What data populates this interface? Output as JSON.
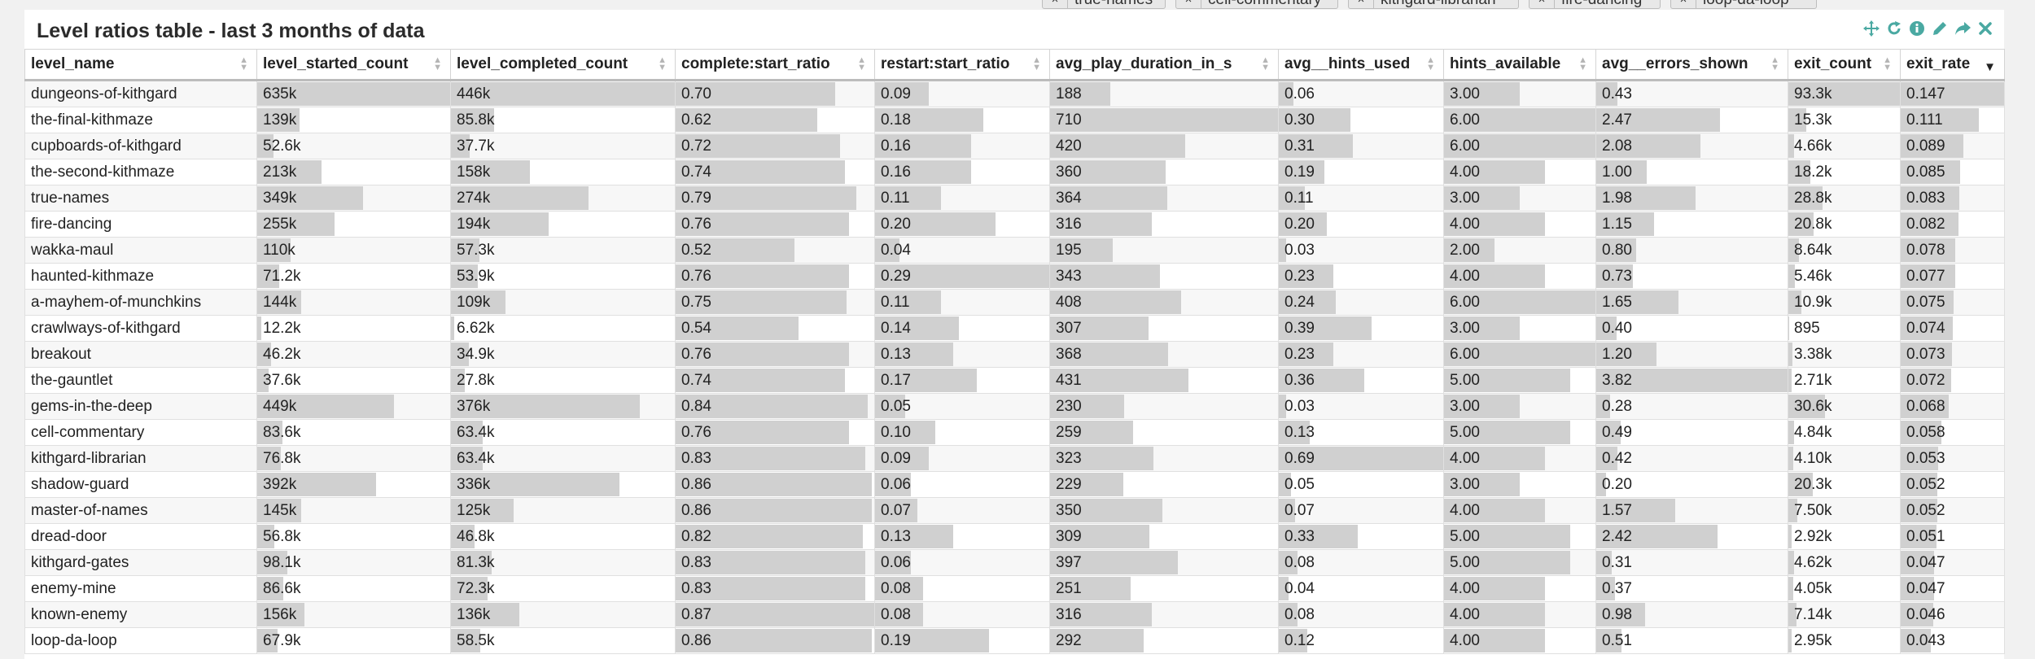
{
  "filters": [
    "true-names",
    "cell-commentary",
    "kithgard-librarian",
    "fire-dancing",
    "loop-da-loop"
  ],
  "panel": {
    "title": "Level ratios table - last 3 months of data"
  },
  "columns": [
    {
      "key": "level_name",
      "label": "level_name"
    },
    {
      "key": "level_started_count",
      "label": "level_started_count"
    },
    {
      "key": "level_completed_count",
      "label": "level_completed_count"
    },
    {
      "key": "complete_start_ratio",
      "label": "complete:start_ratio"
    },
    {
      "key": "restart_start_ratio",
      "label": "restart:start_ratio"
    },
    {
      "key": "avg_play_duration_in_s",
      "label": "avg_play_duration_in_s"
    },
    {
      "key": "avg_hints_used",
      "label": "avg__hints_used"
    },
    {
      "key": "hints_available",
      "label": "hints_available"
    },
    {
      "key": "avg_errors_shown",
      "label": "avg__errors_shown"
    },
    {
      "key": "exit_count",
      "label": "exit_count"
    },
    {
      "key": "exit_rate",
      "label": "exit_rate",
      "sorted": "desc"
    }
  ],
  "rows": [
    {
      "level_name": "dungeons-of-kithgard",
      "level_started_count": "635k",
      "level_completed_count": "446k",
      "complete_start_ratio": "0.70",
      "restart_start_ratio": "0.09",
      "avg_play_duration_in_s": "188",
      "avg_hints_used": "0.06",
      "hints_available": "3.00",
      "avg_errors_shown": "0.43",
      "exit_count": "93.3k",
      "exit_rate": "0.147"
    },
    {
      "level_name": "the-final-kithmaze",
      "level_started_count": "139k",
      "level_completed_count": "85.8k",
      "complete_start_ratio": "0.62",
      "restart_start_ratio": "0.18",
      "avg_play_duration_in_s": "710",
      "avg_hints_used": "0.30",
      "hints_available": "6.00",
      "avg_errors_shown": "2.47",
      "exit_count": "15.3k",
      "exit_rate": "0.111"
    },
    {
      "level_name": "cupboards-of-kithgard",
      "level_started_count": "52.6k",
      "level_completed_count": "37.7k",
      "complete_start_ratio": "0.72",
      "restart_start_ratio": "0.16",
      "avg_play_duration_in_s": "420",
      "avg_hints_used": "0.31",
      "hints_available": "6.00",
      "avg_errors_shown": "2.08",
      "exit_count": "4.66k",
      "exit_rate": "0.089"
    },
    {
      "level_name": "the-second-kithmaze",
      "level_started_count": "213k",
      "level_completed_count": "158k",
      "complete_start_ratio": "0.74",
      "restart_start_ratio": "0.16",
      "avg_play_duration_in_s": "360",
      "avg_hints_used": "0.19",
      "hints_available": "4.00",
      "avg_errors_shown": "1.00",
      "exit_count": "18.2k",
      "exit_rate": "0.085"
    },
    {
      "level_name": "true-names",
      "level_started_count": "349k",
      "level_completed_count": "274k",
      "complete_start_ratio": "0.79",
      "restart_start_ratio": "0.11",
      "avg_play_duration_in_s": "364",
      "avg_hints_used": "0.11",
      "hints_available": "3.00",
      "avg_errors_shown": "1.98",
      "exit_count": "28.8k",
      "exit_rate": "0.083"
    },
    {
      "level_name": "fire-dancing",
      "level_started_count": "255k",
      "level_completed_count": "194k",
      "complete_start_ratio": "0.76",
      "restart_start_ratio": "0.20",
      "avg_play_duration_in_s": "316",
      "avg_hints_used": "0.20",
      "hints_available": "4.00",
      "avg_errors_shown": "1.15",
      "exit_count": "20.8k",
      "exit_rate": "0.082"
    },
    {
      "level_name": "wakka-maul",
      "level_started_count": "110k",
      "level_completed_count": "57.3k",
      "complete_start_ratio": "0.52",
      "restart_start_ratio": "0.04",
      "avg_play_duration_in_s": "195",
      "avg_hints_used": "0.03",
      "hints_available": "2.00",
      "avg_errors_shown": "0.80",
      "exit_count": "8.64k",
      "exit_rate": "0.078"
    },
    {
      "level_name": "haunted-kithmaze",
      "level_started_count": "71.2k",
      "level_completed_count": "53.9k",
      "complete_start_ratio": "0.76",
      "restart_start_ratio": "0.29",
      "avg_play_duration_in_s": "343",
      "avg_hints_used": "0.23",
      "hints_available": "4.00",
      "avg_errors_shown": "0.73",
      "exit_count": "5.46k",
      "exit_rate": "0.077"
    },
    {
      "level_name": "a-mayhem-of-munchkins",
      "level_started_count": "144k",
      "level_completed_count": "109k",
      "complete_start_ratio": "0.75",
      "restart_start_ratio": "0.11",
      "avg_play_duration_in_s": "408",
      "avg_hints_used": "0.24",
      "hints_available": "6.00",
      "avg_errors_shown": "1.65",
      "exit_count": "10.9k",
      "exit_rate": "0.075"
    },
    {
      "level_name": "crawlways-of-kithgard",
      "level_started_count": "12.2k",
      "level_completed_count": "6.62k",
      "complete_start_ratio": "0.54",
      "restart_start_ratio": "0.14",
      "avg_play_duration_in_s": "307",
      "avg_hints_used": "0.39",
      "hints_available": "3.00",
      "avg_errors_shown": "0.40",
      "exit_count": "895",
      "exit_rate": "0.074"
    },
    {
      "level_name": "breakout",
      "level_started_count": "46.2k",
      "level_completed_count": "34.9k",
      "complete_start_ratio": "0.76",
      "restart_start_ratio": "0.13",
      "avg_play_duration_in_s": "368",
      "avg_hints_used": "0.23",
      "hints_available": "6.00",
      "avg_errors_shown": "1.20",
      "exit_count": "3.38k",
      "exit_rate": "0.073"
    },
    {
      "level_name": "the-gauntlet",
      "level_started_count": "37.6k",
      "level_completed_count": "27.8k",
      "complete_start_ratio": "0.74",
      "restart_start_ratio": "0.17",
      "avg_play_duration_in_s": "431",
      "avg_hints_used": "0.36",
      "hints_available": "5.00",
      "avg_errors_shown": "3.82",
      "exit_count": "2.71k",
      "exit_rate": "0.072"
    },
    {
      "level_name": "gems-in-the-deep",
      "level_started_count": "449k",
      "level_completed_count": "376k",
      "complete_start_ratio": "0.84",
      "restart_start_ratio": "0.05",
      "avg_play_duration_in_s": "230",
      "avg_hints_used": "0.03",
      "hints_available": "3.00",
      "avg_errors_shown": "0.28",
      "exit_count": "30.6k",
      "exit_rate": "0.068"
    },
    {
      "level_name": "cell-commentary",
      "level_started_count": "83.6k",
      "level_completed_count": "63.4k",
      "complete_start_ratio": "0.76",
      "restart_start_ratio": "0.10",
      "avg_play_duration_in_s": "259",
      "avg_hints_used": "0.13",
      "hints_available": "5.00",
      "avg_errors_shown": "0.49",
      "exit_count": "4.84k",
      "exit_rate": "0.058"
    },
    {
      "level_name": "kithgard-librarian",
      "level_started_count": "76.8k",
      "level_completed_count": "63.4k",
      "complete_start_ratio": "0.83",
      "restart_start_ratio": "0.09",
      "avg_play_duration_in_s": "323",
      "avg_hints_used": "0.69",
      "hints_available": "4.00",
      "avg_errors_shown": "0.42",
      "exit_count": "4.10k",
      "exit_rate": "0.053"
    },
    {
      "level_name": "shadow-guard",
      "level_started_count": "392k",
      "level_completed_count": "336k",
      "complete_start_ratio": "0.86",
      "restart_start_ratio": "0.06",
      "avg_play_duration_in_s": "229",
      "avg_hints_used": "0.05",
      "hints_available": "3.00",
      "avg_errors_shown": "0.20",
      "exit_count": "20.3k",
      "exit_rate": "0.052"
    },
    {
      "level_name": "master-of-names",
      "level_started_count": "145k",
      "level_completed_count": "125k",
      "complete_start_ratio": "0.86",
      "restart_start_ratio": "0.07",
      "avg_play_duration_in_s": "350",
      "avg_hints_used": "0.07",
      "hints_available": "4.00",
      "avg_errors_shown": "1.57",
      "exit_count": "7.50k",
      "exit_rate": "0.052"
    },
    {
      "level_name": "dread-door",
      "level_started_count": "56.8k",
      "level_completed_count": "46.8k",
      "complete_start_ratio": "0.82",
      "restart_start_ratio": "0.13",
      "avg_play_duration_in_s": "309",
      "avg_hints_used": "0.33",
      "hints_available": "5.00",
      "avg_errors_shown": "2.42",
      "exit_count": "2.92k",
      "exit_rate": "0.051"
    },
    {
      "level_name": "kithgard-gates",
      "level_started_count": "98.1k",
      "level_completed_count": "81.3k",
      "complete_start_ratio": "0.83",
      "restart_start_ratio": "0.06",
      "avg_play_duration_in_s": "397",
      "avg_hints_used": "0.08",
      "hints_available": "5.00",
      "avg_errors_shown": "0.31",
      "exit_count": "4.62k",
      "exit_rate": "0.047"
    },
    {
      "level_name": "enemy-mine",
      "level_started_count": "86.6k",
      "level_completed_count": "72.3k",
      "complete_start_ratio": "0.83",
      "restart_start_ratio": "0.08",
      "avg_play_duration_in_s": "251",
      "avg_hints_used": "0.04",
      "hints_available": "4.00",
      "avg_errors_shown": "0.37",
      "exit_count": "4.05k",
      "exit_rate": "0.047"
    },
    {
      "level_name": "known-enemy",
      "level_started_count": "156k",
      "level_completed_count": "136k",
      "complete_start_ratio": "0.87",
      "restart_start_ratio": "0.08",
      "avg_play_duration_in_s": "316",
      "avg_hints_used": "0.08",
      "hints_available": "4.00",
      "avg_errors_shown": "0.98",
      "exit_count": "7.14k",
      "exit_rate": "0.046"
    },
    {
      "level_name": "loop-da-loop",
      "level_started_count": "67.9k",
      "level_completed_count": "58.5k",
      "complete_start_ratio": "0.86",
      "restart_start_ratio": "0.19",
      "avg_play_duration_in_s": "292",
      "avg_hints_used": "0.12",
      "hints_available": "4.00",
      "avg_errors_shown": "0.51",
      "exit_count": "2.95k",
      "exit_rate": "0.043"
    }
  ],
  "colors": {
    "accent": "#4aa9a2",
    "bar": "#d0d0d0"
  }
}
